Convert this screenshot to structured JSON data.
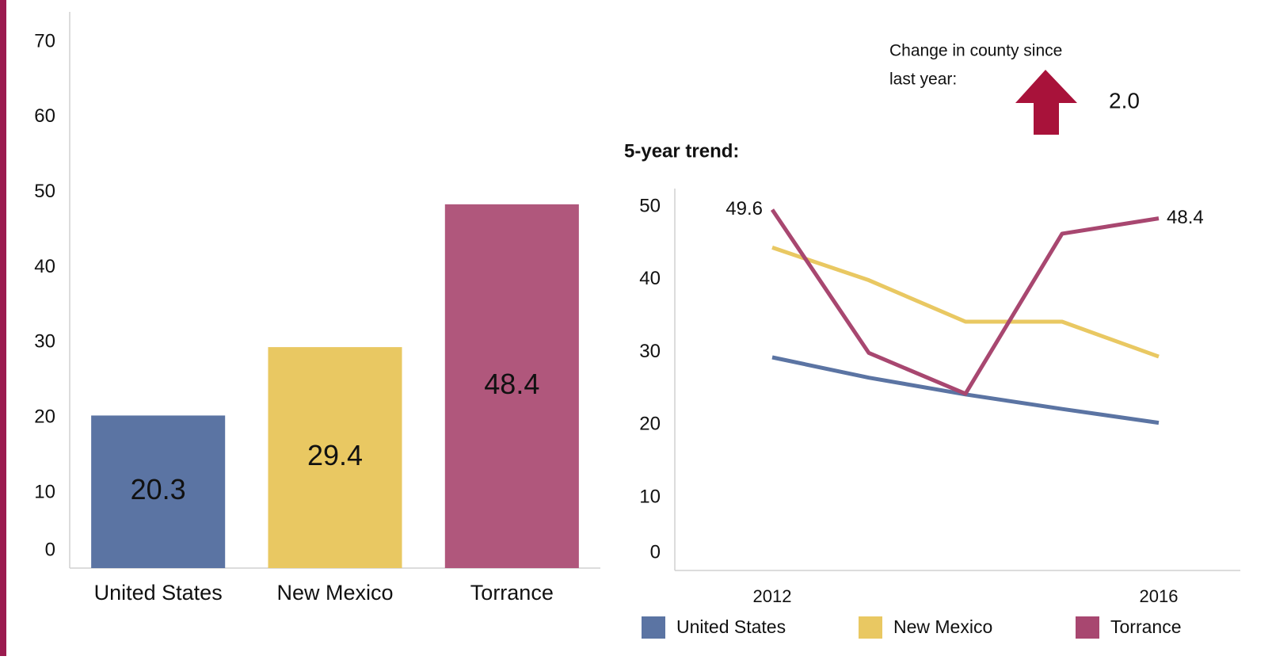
{
  "chart_data": [
    {
      "type": "bar",
      "categories": [
        "United States",
        "New Mexico",
        "Torrance"
      ],
      "values": [
        20.3,
        29.4,
        48.4
      ],
      "colors": [
        "#5b74a3",
        "#e9c862",
        "#b0577c"
      ],
      "ylim": [
        0,
        74
      ],
      "yticks": [
        0,
        10,
        20,
        30,
        40,
        50,
        60,
        70
      ],
      "grid": false
    },
    {
      "type": "line",
      "title": "5-year trend:",
      "categories": [
        "2012",
        null,
        null,
        null,
        "2016"
      ],
      "series": [
        {
          "name": "United States",
          "color": "#5b74a3",
          "values": [
            29.3,
            26.5,
            24.2,
            22.2,
            20.3
          ]
        },
        {
          "name": "New Mexico",
          "color": "#e9c862",
          "values": [
            44.4,
            39.9,
            34.2,
            34.2,
            29.4
          ]
        },
        {
          "name": "Torrance",
          "color": "#a84770",
          "values": [
            49.6,
            29.9,
            24.3,
            46.3,
            48.4
          ],
          "labels": "ends"
        }
      ],
      "ylim": [
        0,
        52.5
      ],
      "yticks": [
        0,
        10,
        20,
        30,
        40,
        50
      ],
      "grid": false,
      "legend": "bottom",
      "annotation": {
        "lines": [
          "Change in county since",
          "last year:"
        ],
        "change": {
          "value": 2,
          "label": "2.0"
        },
        "direction": "up",
        "color": "#a8123a"
      }
    }
  ]
}
